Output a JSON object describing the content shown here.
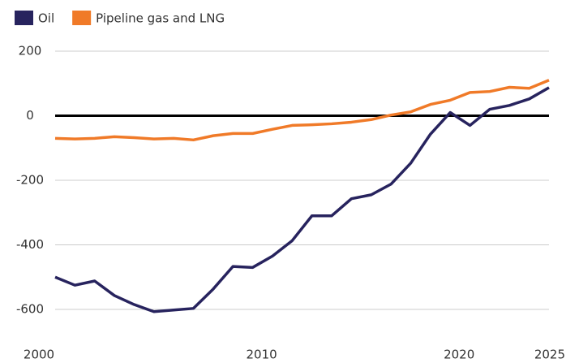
{
  "chart_data": {
    "type": "line",
    "x": [
      2000,
      2001,
      2002,
      2003,
      2004,
      2005,
      2006,
      2007,
      2008,
      2009,
      2010,
      2011,
      2012,
      2013,
      2014,
      2015,
      2016,
      2017,
      2018,
      2019,
      2020,
      2021,
      2022,
      2023,
      2024,
      2025
    ],
    "series": [
      {
        "name": "Oil",
        "color": "#27235e",
        "values": [
          -500,
          -525,
          -512,
          -557,
          -585,
          -607,
          -602,
          -597,
          -537,
          -467,
          -470,
          -435,
          -387,
          -310,
          -310,
          -257,
          -245,
          -212,
          -147,
          -57,
          10,
          -30,
          20,
          32,
          52,
          87
        ]
      },
      {
        "name": "Pipeline gas and LNG",
        "color": "#f07a28",
        "values": [
          -70,
          -72,
          -70,
          -65,
          -68,
          -72,
          -70,
          -75,
          -62,
          -55,
          -55,
          -42,
          -30,
          -28,
          -25,
          -20,
          -12,
          2,
          12,
          35,
          48,
          72,
          75,
          88,
          85,
          110
        ]
      }
    ],
    "xlim": [
      2000,
      2025
    ],
    "xticks": [
      2000,
      2010,
      2020,
      2025
    ],
    "ylim": [
      -650,
      200
    ],
    "yticks": [
      -600,
      -400,
      -200,
      0,
      200
    ],
    "grid": true,
    "legend": "top-left"
  }
}
